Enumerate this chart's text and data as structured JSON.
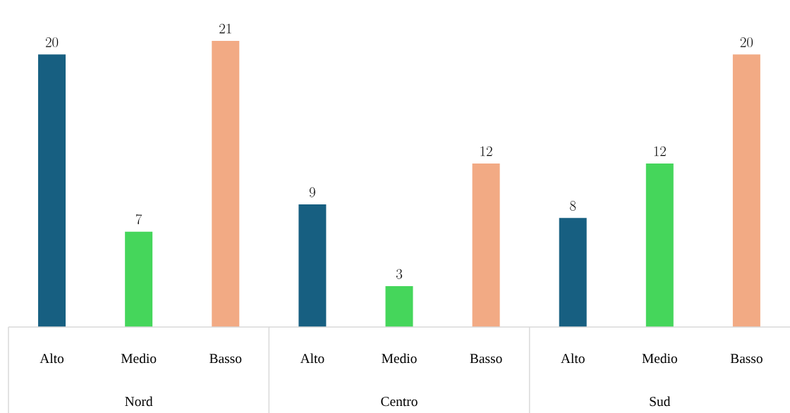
{
  "chart_data": {
    "type": "bar",
    "categories": [
      "Alto",
      "Medio",
      "Basso",
      "Alto",
      "Medio",
      "Basso",
      "Alto",
      "Medio",
      "Basso"
    ],
    "values": [
      20,
      7,
      21,
      9,
      3,
      12,
      8,
      12,
      20
    ],
    "colors": [
      "#175f81",
      "#45d65b",
      "#f2aa84",
      "#175f81",
      "#45d65b",
      "#f2aa84",
      "#175f81",
      "#45d65b",
      "#f2aa84"
    ],
    "annotations": [
      "Nord",
      "Centro",
      "Sud"
    ],
    "data_labels": true
  }
}
